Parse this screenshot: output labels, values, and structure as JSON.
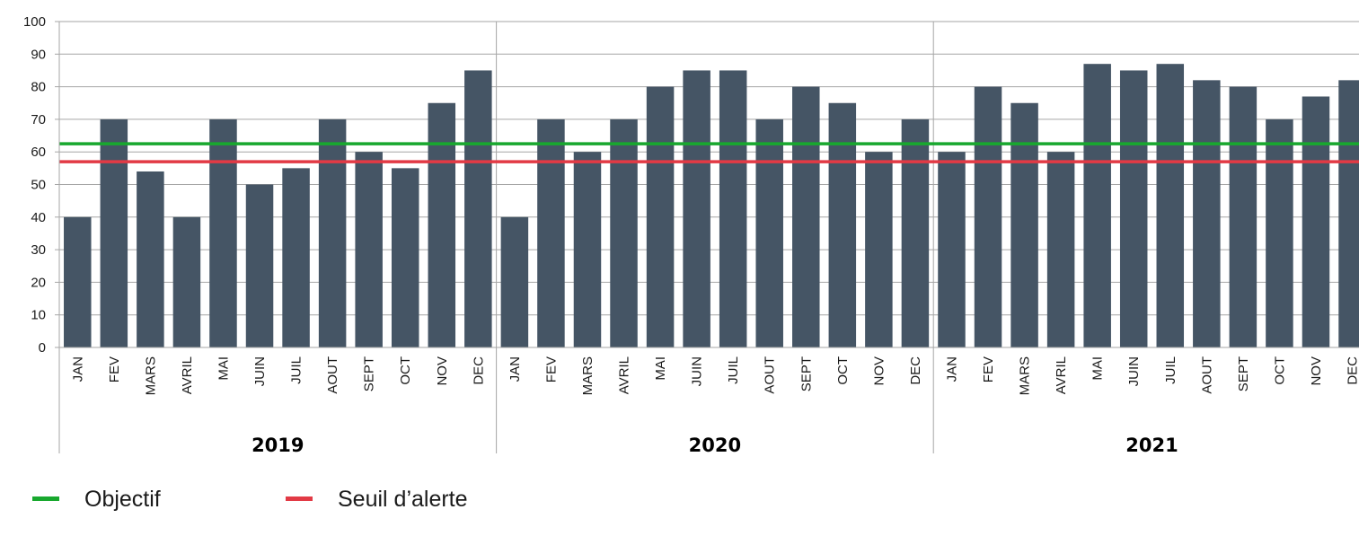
{
  "chart_data": {
    "type": "bar",
    "groups": [
      {
        "label": "2019",
        "categories": [
          "JAN",
          "FEV",
          "MARS",
          "AVRIL",
          "MAI",
          "JUIN",
          "JUIL",
          "AOUT",
          "SEPT",
          "OCT",
          "NOV",
          "DEC"
        ],
        "values": [
          40,
          70,
          54,
          40,
          70,
          50,
          55,
          70,
          60,
          55,
          75,
          85
        ]
      },
      {
        "label": "2020",
        "categories": [
          "JAN",
          "FEV",
          "MARS",
          "AVRIL",
          "MAI",
          "JUIN",
          "JUIL",
          "AOUT",
          "SEPT",
          "OCT",
          "NOV",
          "DEC"
        ],
        "values": [
          40,
          70,
          60,
          70,
          80,
          85,
          85,
          70,
          80,
          75,
          60,
          70
        ]
      },
      {
        "label": "2021",
        "categories": [
          "JAN",
          "FEV",
          "MARS",
          "AVRIL",
          "MAI",
          "JUIN",
          "JUIL",
          "AOUT",
          "SEPT",
          "OCT",
          "NOV",
          "DEC"
        ],
        "values": [
          60,
          80,
          75,
          60,
          87,
          85,
          87,
          82,
          80,
          70,
          77,
          82
        ]
      }
    ],
    "ylim": [
      0,
      100
    ],
    "yticks": [
      0,
      10,
      20,
      30,
      40,
      50,
      60,
      70,
      80,
      90,
      100
    ],
    "grid": true,
    "reference_lines": [
      {
        "name": "Objectif",
        "value": 62.5,
        "color": "#18a82e"
      },
      {
        "name": "Seuil d’alerte",
        "value": 57,
        "color": "#e23a45"
      }
    ],
    "bar_color": "#455565",
    "legend_position": "bottom-left"
  }
}
